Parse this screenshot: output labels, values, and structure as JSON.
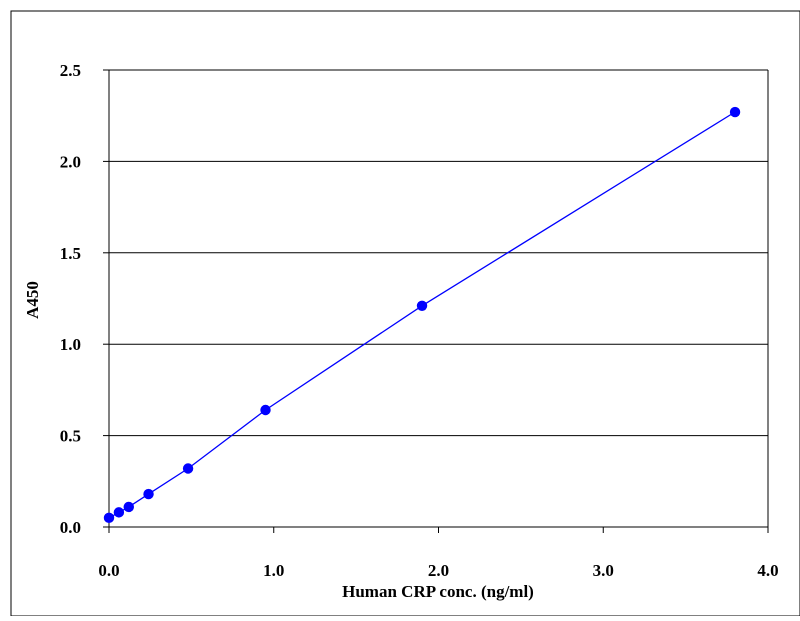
{
  "chart_data": {
    "type": "line",
    "xlabel": "Human CRP conc. (ng/ml)",
    "ylabel": "A450",
    "xlim": [
      0,
      4.0
    ],
    "ylim": [
      0,
      2.5
    ],
    "x_ticks": [
      "0.0",
      "1.0",
      "2.0",
      "3.0",
      "4.0"
    ],
    "y_ticks": [
      "0.0",
      "0.5",
      "1.0",
      "1.5",
      "2.0",
      "2.5"
    ],
    "grid": "horizontal",
    "colors": {
      "series": "#0000ff",
      "grid": "#000000",
      "axis": "#000000"
    },
    "series": [
      {
        "x": [
          0.0,
          0.06,
          0.12,
          0.24,
          0.48,
          0.95,
          1.9,
          3.8
        ],
        "y": [
          0.05,
          0.08,
          0.11,
          0.18,
          0.32,
          0.64,
          1.21,
          2.27
        ]
      }
    ]
  }
}
